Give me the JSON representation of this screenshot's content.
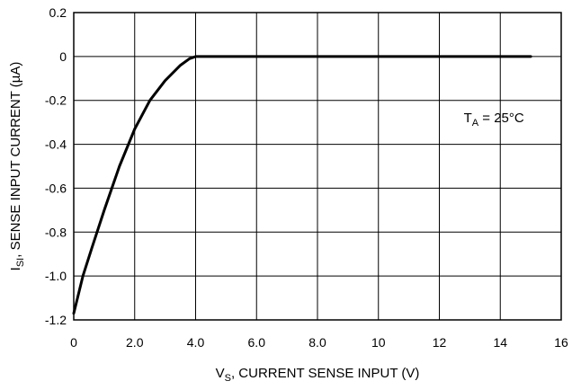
{
  "chart_data": {
    "type": "line",
    "x_tick_labels": [
      "0",
      "2.0",
      "4.0",
      "6.0",
      "8.0",
      "10",
      "12",
      "14",
      "16"
    ],
    "y_tick_labels": [
      "0.2",
      "0",
      "-0.2",
      "-0.4",
      "-0.6",
      "-0.8",
      "-1.0",
      "-1.2"
    ],
    "xlim": [
      0,
      16
    ],
    "ylim": [
      -1.2,
      0.2
    ],
    "grid": true,
    "xlabel": {
      "main": "V",
      "sub": "S",
      "rest": ", CURRENT SENSE INPUT (V)"
    },
    "ylabel": {
      "main": "I",
      "sub": "SI",
      "rest": ", SENSE INPUT CURRENT (µA)"
    },
    "annotation": {
      "main": "T",
      "sub": "A",
      "rest": " = 25°C",
      "x": 12.8,
      "y": -0.3
    },
    "series": [
      {
        "x": [
          0,
          0.3,
          0.6,
          1.0,
          1.5,
          2.0,
          2.5,
          3.0,
          3.5,
          3.8,
          4.0,
          6,
          8,
          10,
          12,
          14,
          15
        ],
        "y": [
          -1.17,
          -1.0,
          -0.87,
          -0.7,
          -0.5,
          -0.33,
          -0.2,
          -0.11,
          -0.04,
          -0.01,
          0,
          0,
          0,
          0,
          0,
          0,
          0
        ]
      }
    ]
  }
}
